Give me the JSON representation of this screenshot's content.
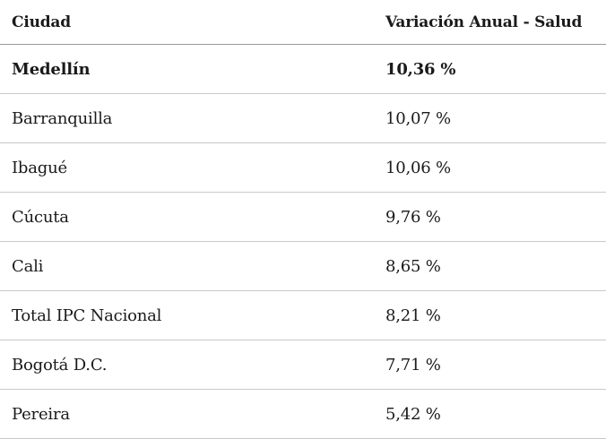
{
  "table": {
    "headers": {
      "city": "Ciudad",
      "value": "Variación Anual - Salud"
    },
    "rows": [
      {
        "city": "Medellín",
        "value": "10,36 %",
        "bold": true
      },
      {
        "city": "Barranquilla",
        "value": "10,07 %"
      },
      {
        "city": "Ibagué",
        "value": "10,06 %"
      },
      {
        "city": "Cúcuta",
        "value": "9,76 %"
      },
      {
        "city": "Cali",
        "value": "8,65 %"
      },
      {
        "city": "Total IPC Nacional",
        "value": "8,21 %"
      },
      {
        "city": "Bogotá D.C.",
        "value": "7,71 %"
      },
      {
        "city": "Pereira",
        "value": "5,42 %"
      }
    ]
  }
}
